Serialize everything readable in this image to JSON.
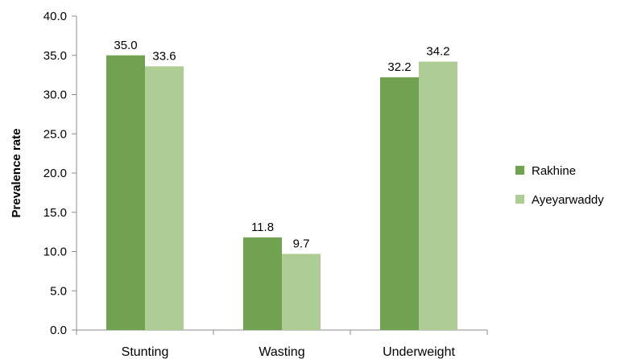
{
  "chart_data": {
    "type": "bar",
    "title": "",
    "xlabel": "",
    "ylabel": "Prevalence rate",
    "categories": [
      "Stunting",
      "Wasting",
      "Underweight"
    ],
    "series": [
      {
        "name": "Rakhine",
        "values": [
          35.0,
          11.8,
          32.2
        ],
        "labels": [
          "35.0",
          "11.8",
          "32.2"
        ],
        "color": "#70a24f"
      },
      {
        "name": "Ayeyarwaddy",
        "values": [
          33.6,
          9.7,
          34.2
        ],
        "labels": [
          "33.6",
          "9.7",
          "34.2"
        ],
        "color": "#aecd95"
      }
    ],
    "ylim": [
      0,
      40
    ],
    "yticks": [
      "0.0",
      "5.0",
      "10.0",
      "15.0",
      "20.0",
      "25.0",
      "30.0",
      "35.0",
      "40.0"
    ],
    "grid": false,
    "legend_position": "right"
  }
}
